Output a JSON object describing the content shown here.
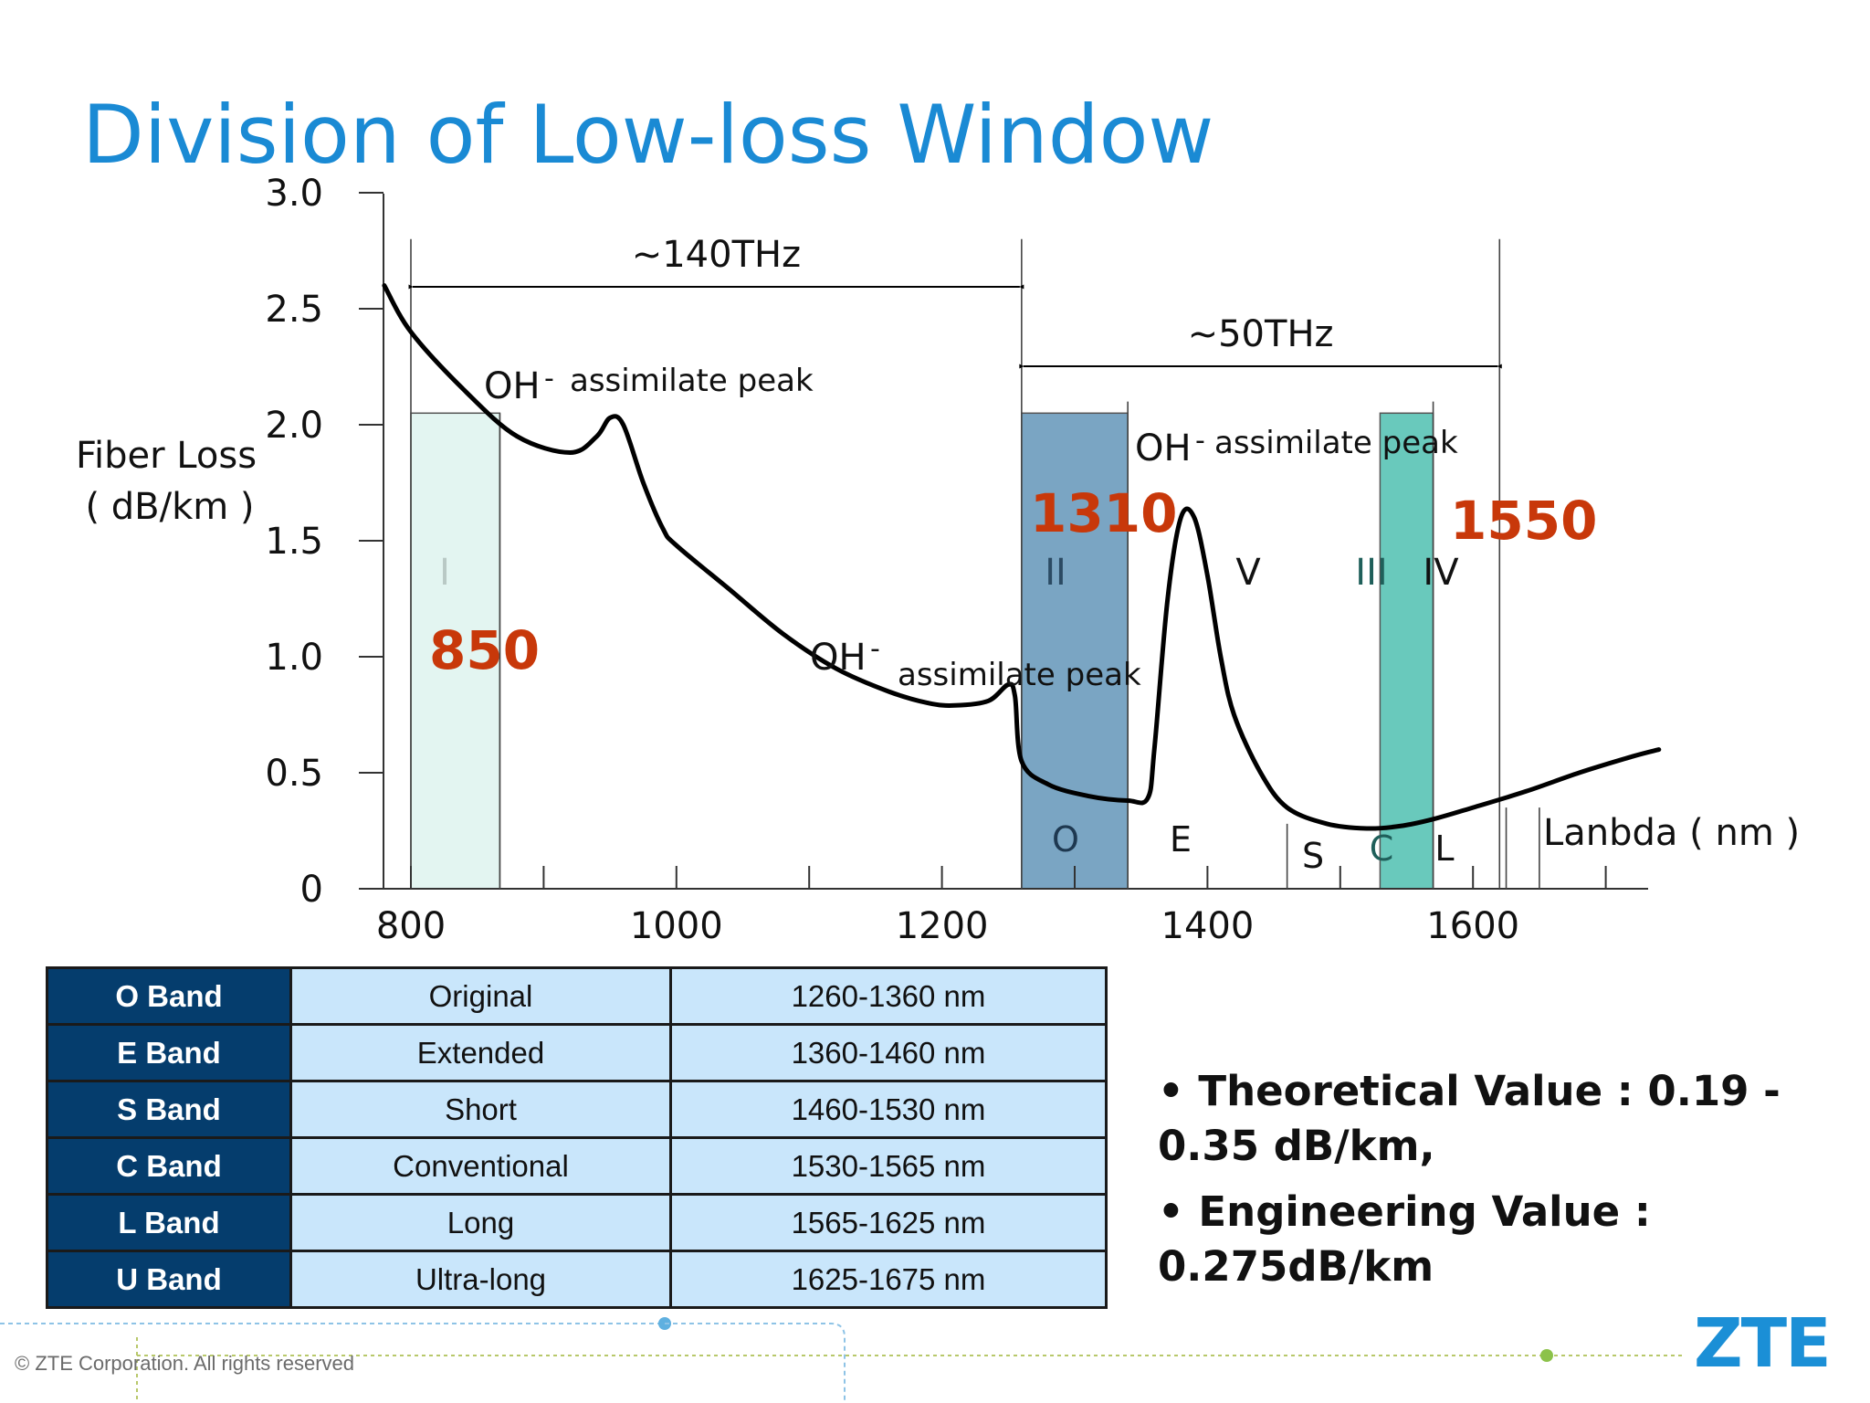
{
  "title": "Division of Low-loss Window",
  "chart_data": {
    "type": "line",
    "ylabel": [
      "Fiber Loss",
      "( dB/km )"
    ],
    "xlabel": "Lanbda ( nm )",
    "xlim": [
      780,
      1740
    ],
    "ylim": [
      0,
      3.0
    ],
    "x_ticks": [
      800,
      1000,
      1200,
      1400,
      1600
    ],
    "y_ticks": [
      {
        "value": 0,
        "label": "0"
      },
      {
        "value": 0.5,
        "label": "0.5"
      },
      {
        "value": 1.0,
        "label": "1.0"
      },
      {
        "value": 1.5,
        "label": "1.5"
      },
      {
        "value": 2.0,
        "label": "2.0"
      },
      {
        "value": 2.5,
        "label": "2.5"
      },
      {
        "value": 3.0,
        "label": "3.0"
      }
    ],
    "series": [
      {
        "name": "Fiber Loss",
        "x": [
          780,
          800,
          840,
          880,
          920,
          940,
          950,
          960,
          975,
          990,
          1000,
          1040,
          1080,
          1120,
          1160,
          1190,
          1210,
          1235,
          1250,
          1255,
          1260,
          1280,
          1310,
          1340,
          1355,
          1360,
          1370,
          1380,
          1390,
          1400,
          1410,
          1420,
          1440,
          1460,
          1490,
          1520,
          1545,
          1570,
          1600,
          1640,
          1680,
          1720,
          1740
        ],
        "y": [
          2.6,
          2.4,
          2.15,
          1.95,
          1.88,
          1.95,
          2.03,
          2.0,
          1.75,
          1.55,
          1.48,
          1.29,
          1.1,
          0.95,
          0.85,
          0.8,
          0.79,
          0.81,
          0.88,
          0.83,
          0.55,
          0.45,
          0.4,
          0.38,
          0.39,
          0.6,
          1.25,
          1.6,
          1.6,
          1.35,
          1.0,
          0.75,
          0.5,
          0.35,
          0.28,
          0.26,
          0.27,
          0.3,
          0.35,
          0.42,
          0.5,
          0.57,
          0.6
        ]
      }
    ],
    "windows": [
      {
        "label": "I",
        "x0": 800,
        "x1": 867,
        "color": "#e3f5f1",
        "label_color": "#b9c9c5",
        "wavelength": "850"
      },
      {
        "label": "II",
        "x0": 1260,
        "x1": 1340,
        "color": "#7aa5c3",
        "label_color": "#2b4a63",
        "wavelength": "1310"
      },
      {
        "label": "III",
        "x0": 1530,
        "x1": 1570,
        "color": "#69c9bc",
        "label_color": "#1f5f5a",
        "wavelength": "1550"
      }
    ],
    "region_labels": [
      "V",
      "IV"
    ],
    "band_letters": [
      "O",
      "E",
      "S",
      "C",
      "L"
    ],
    "frequency_spans": [
      {
        "label": "~140THz",
        "x0": 800,
        "x1": 1260
      },
      {
        "label": "~50THz",
        "x0": 1260,
        "x1": 1620
      }
    ],
    "annotations": [
      {
        "ion": "OH",
        "charge": "-",
        "text": "assimilate peak",
        "near_x": 950
      },
      {
        "ion": "OH",
        "charge": "-",
        "text": "assimilate peak",
        "near_x": 1385
      },
      {
        "ion": "OH",
        "charge": "-",
        "text": "assimilate peak",
        "near_x": 1250
      }
    ]
  },
  "bands": [
    {
      "band": "O Band",
      "name": "Original",
      "range": "1260-1360 nm"
    },
    {
      "band": "E Band",
      "name": "Extended",
      "range": "1360-1460 nm"
    },
    {
      "band": "S Band",
      "name": "Short",
      "range": "1460-1530 nm"
    },
    {
      "band": "C Band",
      "name": "Conventional",
      "range": "1530-1565 nm"
    },
    {
      "band": "L Band",
      "name": "Long",
      "range": "1565-1625 nm"
    },
    {
      "band": "U Band",
      "name": "Ultra-long",
      "range": "1625-1675 nm"
    }
  ],
  "notes": [
    "• Theoretical Value : 0.19 - 0.35 dB/km,",
    "•  Engineering Value : 0.275dB/km"
  ],
  "footer": {
    "copyright": "© ZTE Corporation. All rights reserved",
    "logo": "ZTE"
  },
  "colors": {
    "title": "#1a8ad4",
    "highlight": "#c8380a",
    "band_dark": "#053d6d",
    "band_light": "#c9e6fb",
    "logo": "#1b8fd6"
  }
}
